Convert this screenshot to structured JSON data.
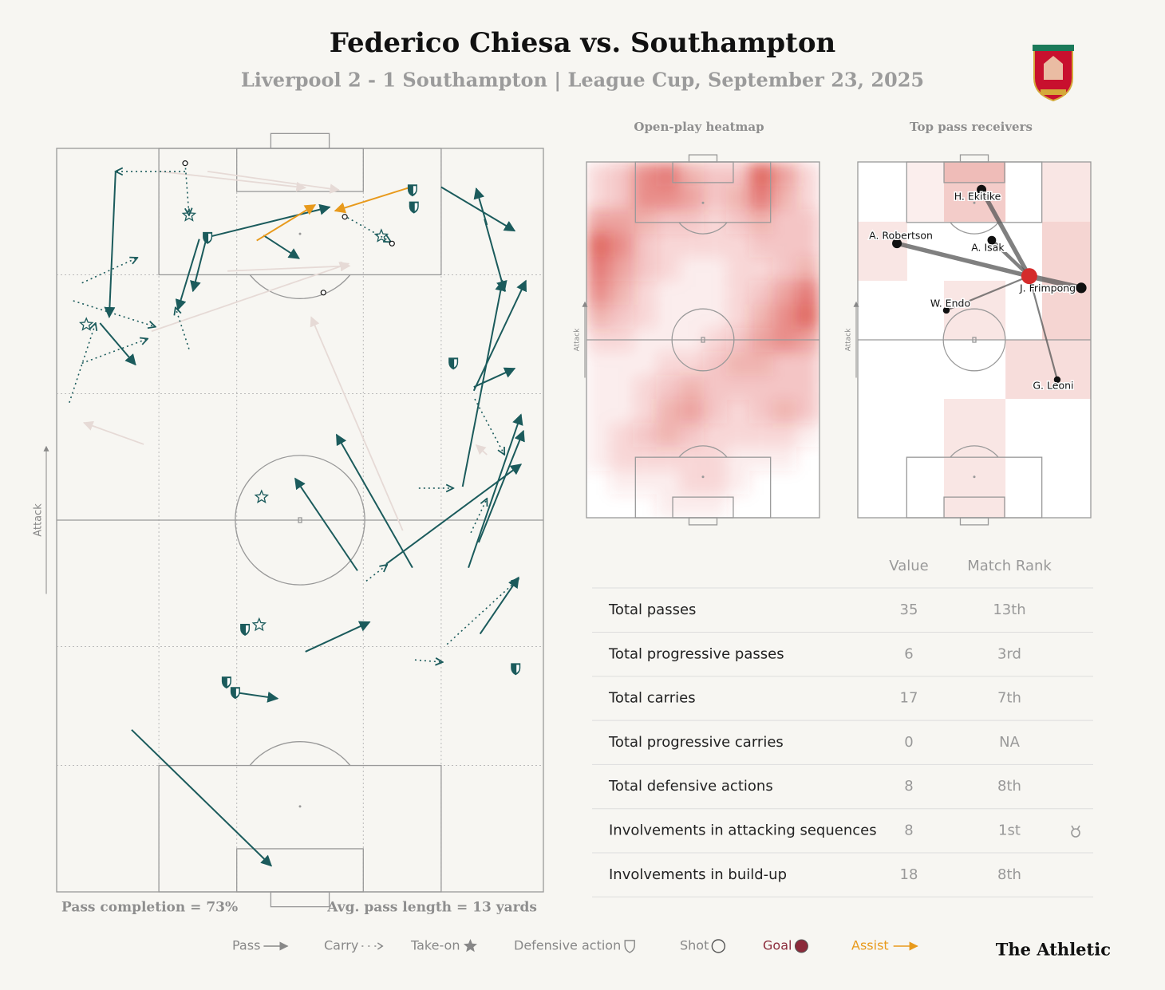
{
  "header": {
    "title": "Federico Chiesa vs. Southampton",
    "subtitle": "Liverpool 2 - 1 Southampton | League Cup, September 23, 2025"
  },
  "pass_map": {
    "attack_label": "Attack",
    "pass_completion": "Pass completion = 73%",
    "avg_pass_length": "Avg. pass length = 13 yards",
    "passes": [
      {
        "x1": 12.1,
        "y1": 96.8,
        "x2": 10.8,
        "y2": 77.3
      },
      {
        "x1": 30.8,
        "y1": 88.0,
        "x2": 28.0,
        "y2": 80.8
      },
      {
        "x1": 29.3,
        "y1": 87.8,
        "x2": 24.9,
        "y2": 78.3
      },
      {
        "x1": 30.7,
        "y1": 88.0,
        "x2": 56.1,
        "y2": 92.1
      },
      {
        "x1": 42.5,
        "y1": 88.3,
        "x2": 49.8,
        "y2": 85.2
      },
      {
        "x1": 8.9,
        "y1": 76.5,
        "x2": 16.2,
        "y2": 70.9
      },
      {
        "x1": 79.0,
        "y1": 94.8,
        "x2": 94.1,
        "y2": 88.9
      },
      {
        "x1": 88.4,
        "y1": 89.7,
        "x2": 86.2,
        "y2": 94.6
      },
      {
        "x1": 87.9,
        "y1": 90.5,
        "x2": 92.0,
        "y2": 80.8
      },
      {
        "x1": 85.7,
        "y1": 67.4,
        "x2": 96.4,
        "y2": 82.2
      },
      {
        "x1": 83.4,
        "y1": 54.5,
        "x2": 91.6,
        "y2": 82.2
      },
      {
        "x1": 85.7,
        "y1": 67.9,
        "x2": 94.1,
        "y2": 70.4
      },
      {
        "x1": 84.6,
        "y1": 43.6,
        "x2": 95.4,
        "y2": 64.2
      },
      {
        "x1": 86.7,
        "y1": 47.0,
        "x2": 95.9,
        "y2": 62.0
      },
      {
        "x1": 67.7,
        "y1": 44.1,
        "x2": 95.4,
        "y2": 57.5
      },
      {
        "x1": 61.8,
        "y1": 43.2,
        "x2": 49.0,
        "y2": 55.6
      },
      {
        "x1": 73.1,
        "y1": 43.6,
        "x2": 57.5,
        "y2": 61.5
      },
      {
        "x1": 51.1,
        "y1": 32.3,
        "x2": 64.3,
        "y2": 36.3
      },
      {
        "x1": 87.0,
        "y1": 34.7,
        "x2": 94.9,
        "y2": 42.3
      },
      {
        "x1": 37.0,
        "y1": 26.8,
        "x2": 45.4,
        "y2": 26.0
      },
      {
        "x1": 15.4,
        "y1": 21.8,
        "x2": 44.1,
        "y2": 3.5
      }
    ],
    "assists": [
      {
        "x1": 41.1,
        "y1": 87.6,
        "x2": 53.1,
        "y2": 92.4
      },
      {
        "x1": 72.8,
        "y1": 94.8,
        "x2": 57.2,
        "y2": 91.6
      }
    ],
    "incomplete_passes": [
      {
        "x1": 21.1,
        "y1": 96.9,
        "x2": 51.1,
        "y2": 94.7
      },
      {
        "x1": 31.0,
        "y1": 96.9,
        "x2": 58.0,
        "y2": 94.4
      },
      {
        "x1": 35.1,
        "y1": 83.5,
        "x2": 60.2,
        "y2": 84.2
      },
      {
        "x1": 19.5,
        "y1": 75.4,
        "x2": 60.0,
        "y2": 84.5
      },
      {
        "x1": 71.1,
        "y1": 48.6,
        "x2": 52.3,
        "y2": 77.3
      },
      {
        "x1": 17.9,
        "y1": 60.2,
        "x2": 5.6,
        "y2": 63.1
      },
      {
        "x1": 88.4,
        "y1": 58.8,
        "x2": 86.2,
        "y2": 60.1
      }
    ],
    "carries": [
      {
        "x1": 26.4,
        "y1": 96.9,
        "x2": 12.1,
        "y2": 96.9
      },
      {
        "x1": 26.4,
        "y1": 98.0,
        "x2": 27.2,
        "y2": 91.0
      },
      {
        "x1": 5.2,
        "y1": 81.9,
        "x2": 16.6,
        "y2": 85.3
      },
      {
        "x1": 3.4,
        "y1": 79.5,
        "x2": 20.3,
        "y2": 76.0
      },
      {
        "x1": 2.6,
        "y1": 65.8,
        "x2": 8.0,
        "y2": 76.5
      },
      {
        "x1": 5.2,
        "y1": 71.1,
        "x2": 18.7,
        "y2": 74.4
      },
      {
        "x1": 27.2,
        "y1": 73.0,
        "x2": 24.4,
        "y2": 78.6
      },
      {
        "x1": 58.9,
        "y1": 91.0,
        "x2": 68.7,
        "y2": 87.4
      },
      {
        "x1": 74.4,
        "y1": 54.3,
        "x2": 81.5,
        "y2": 54.3
      },
      {
        "x1": 80.2,
        "y1": 33.3,
        "x2": 94.9,
        "y2": 42.1
      },
      {
        "x1": 73.6,
        "y1": 31.2,
        "x2": 79.3,
        "y2": 30.9
      },
      {
        "x1": 85.1,
        "y1": 48.3,
        "x2": 88.4,
        "y2": 52.9
      },
      {
        "x1": 85.9,
        "y1": 66.3,
        "x2": 92.0,
        "y2": 58.8
      },
      {
        "x1": 63.6,
        "y1": 41.8,
        "x2": 67.9,
        "y2": 44.0
      }
    ],
    "take_ons": [
      {
        "x": 27.2,
        "y": 91.0
      },
      {
        "x": 66.7,
        "y": 88.2
      },
      {
        "x": 6.1,
        "y": 76.3
      },
      {
        "x": 42.1,
        "y": 53.1
      },
      {
        "x": 41.6,
        "y": 35.9
      }
    ],
    "defensive_actions": [
      {
        "x": 73.1,
        "y": 94.4
      },
      {
        "x": 73.4,
        "y": 92.1
      },
      {
        "x": 31.0,
        "y": 88.0
      },
      {
        "x": 81.5,
        "y": 71.1
      },
      {
        "x": 38.7,
        "y": 35.3
      },
      {
        "x": 34.9,
        "y": 28.2
      },
      {
        "x": 36.7,
        "y": 26.8
      },
      {
        "x": 94.3,
        "y": 30.0
      }
    ],
    "shots": [
      {
        "x": 26.4,
        "y": 98.0
      },
      {
        "x": 59.2,
        "y": 90.8
      },
      {
        "x": 68.9,
        "y": 87.2
      },
      {
        "x": 54.8,
        "y": 80.6
      }
    ]
  },
  "heatmap": {
    "title": "Open-play heatmap",
    "attack_label": "Attack",
    "grid": [
      [
        2,
        3,
        6,
        7,
        4,
        3,
        3,
        8,
        5,
        2
      ],
      [
        2,
        3,
        6,
        6,
        5,
        3,
        4,
        7,
        4,
        2
      ],
      [
        5,
        5,
        4,
        3,
        3,
        2,
        3,
        4,
        3,
        3
      ],
      [
        8,
        6,
        3,
        2,
        2,
        2,
        2,
        3,
        3,
        3
      ],
      [
        7,
        5,
        3,
        2,
        1,
        1,
        2,
        2,
        3,
        4
      ],
      [
        6,
        4,
        2,
        1,
        1,
        1,
        2,
        3,
        5,
        7
      ],
      [
        4,
        3,
        2,
        1,
        1,
        1,
        2,
        4,
        6,
        8
      ],
      [
        2,
        2,
        1,
        1,
        1,
        2,
        3,
        5,
        6,
        5
      ],
      [
        1,
        1,
        1,
        2,
        2,
        3,
        4,
        4,
        3,
        3
      ],
      [
        1,
        1,
        2,
        3,
        4,
        3,
        3,
        3,
        3,
        3
      ],
      [
        1,
        1,
        2,
        4,
        5,
        3,
        2,
        3,
        4,
        3
      ],
      [
        1,
        2,
        3,
        4,
        3,
        2,
        2,
        2,
        2,
        1
      ],
      [
        1,
        2,
        2,
        2,
        2,
        2,
        1,
        1,
        1,
        0
      ],
      [
        0,
        1,
        1,
        1,
        2,
        2,
        1,
        0,
        0,
        0
      ],
      [
        0,
        0,
        0,
        1,
        1,
        1,
        0,
        0,
        0,
        0
      ]
    ]
  },
  "pass_receivers": {
    "title": "Top pass receivers",
    "attack_label": "Attack",
    "origin": {
      "x": 73.6,
      "y": 67.9
    },
    "zones": [
      {
        "x0": 21.2,
        "x1": 37.0,
        "y0": 83.2,
        "y1": 100,
        "intensity": 1
      },
      {
        "x0": 37.0,
        "x1": 63.4,
        "y0": 94.2,
        "y1": 100,
        "intensity": 4
      },
      {
        "x0": 37.0,
        "x1": 63.4,
        "y0": 83.2,
        "y1": 94.2,
        "intensity": 3
      },
      {
        "x0": 79.1,
        "x1": 100,
        "y0": 83.2,
        "y1": 100,
        "intensity": 1.5
      },
      {
        "x0": 0,
        "x1": 21.2,
        "y0": 66.6,
        "y1": 83.2,
        "intensity": 1.5
      },
      {
        "x0": 79.1,
        "x1": 100,
        "y0": 50,
        "y1": 83.2,
        "intensity": 2.5
      },
      {
        "x0": 37.0,
        "x1": 63.4,
        "y0": 50,
        "y1": 66.6,
        "intensity": 1.5
      },
      {
        "x0": 63.4,
        "x1": 100,
        "y0": 33.4,
        "y1": 50,
        "intensity": 2
      },
      {
        "x0": 37.0,
        "x1": 63.4,
        "y0": 0,
        "y1": 33.4,
        "intensity": 1.5
      }
    ],
    "players": [
      {
        "name": "H. Ekitike",
        "x": 53.1,
        "y": 92.2,
        "passes": 5
      },
      {
        "name": "A. Isak",
        "x": 57.5,
        "y": 78.0,
        "passes": 4
      },
      {
        "name": "A. Robertson",
        "x": 16.8,
        "y": 77.1,
        "passes": 5
      },
      {
        "name": "J. Frimpong",
        "x": 95.9,
        "y": 64.6,
        "passes": 6
      },
      {
        "name": "W. Endo",
        "x": 38.0,
        "y": 58.3,
        "passes": 2
      },
      {
        "name": "G. Leoni",
        "x": 85.6,
        "y": 38.8,
        "passes": 2
      }
    ]
  },
  "stats_table": {
    "columns": [
      "Value",
      "Match Rank"
    ],
    "rows": [
      {
        "label": "Total passes",
        "value": 35,
        "rank": "13th"
      },
      {
        "label": "Total progressive passes",
        "value": 6,
        "rank": "3rd"
      },
      {
        "label": "Total carries",
        "value": 17,
        "rank": "7th"
      },
      {
        "label": "Total progressive carries",
        "value": 0,
        "rank": "NA"
      },
      {
        "label": "Total defensive actions",
        "value": 8,
        "rank": "8th"
      },
      {
        "label": "Involvements in attacking sequences",
        "value": 8,
        "rank": "1st"
      },
      {
        "label": "Involvements in build-up",
        "value": 18,
        "rank": "8th"
      }
    ]
  },
  "legend": [
    "Pass",
    "Carry",
    "Take-on",
    "Defensive action",
    "Shot",
    "Goal",
    "Assist"
  ],
  "footer": {
    "brand": "The Athletic"
  }
}
